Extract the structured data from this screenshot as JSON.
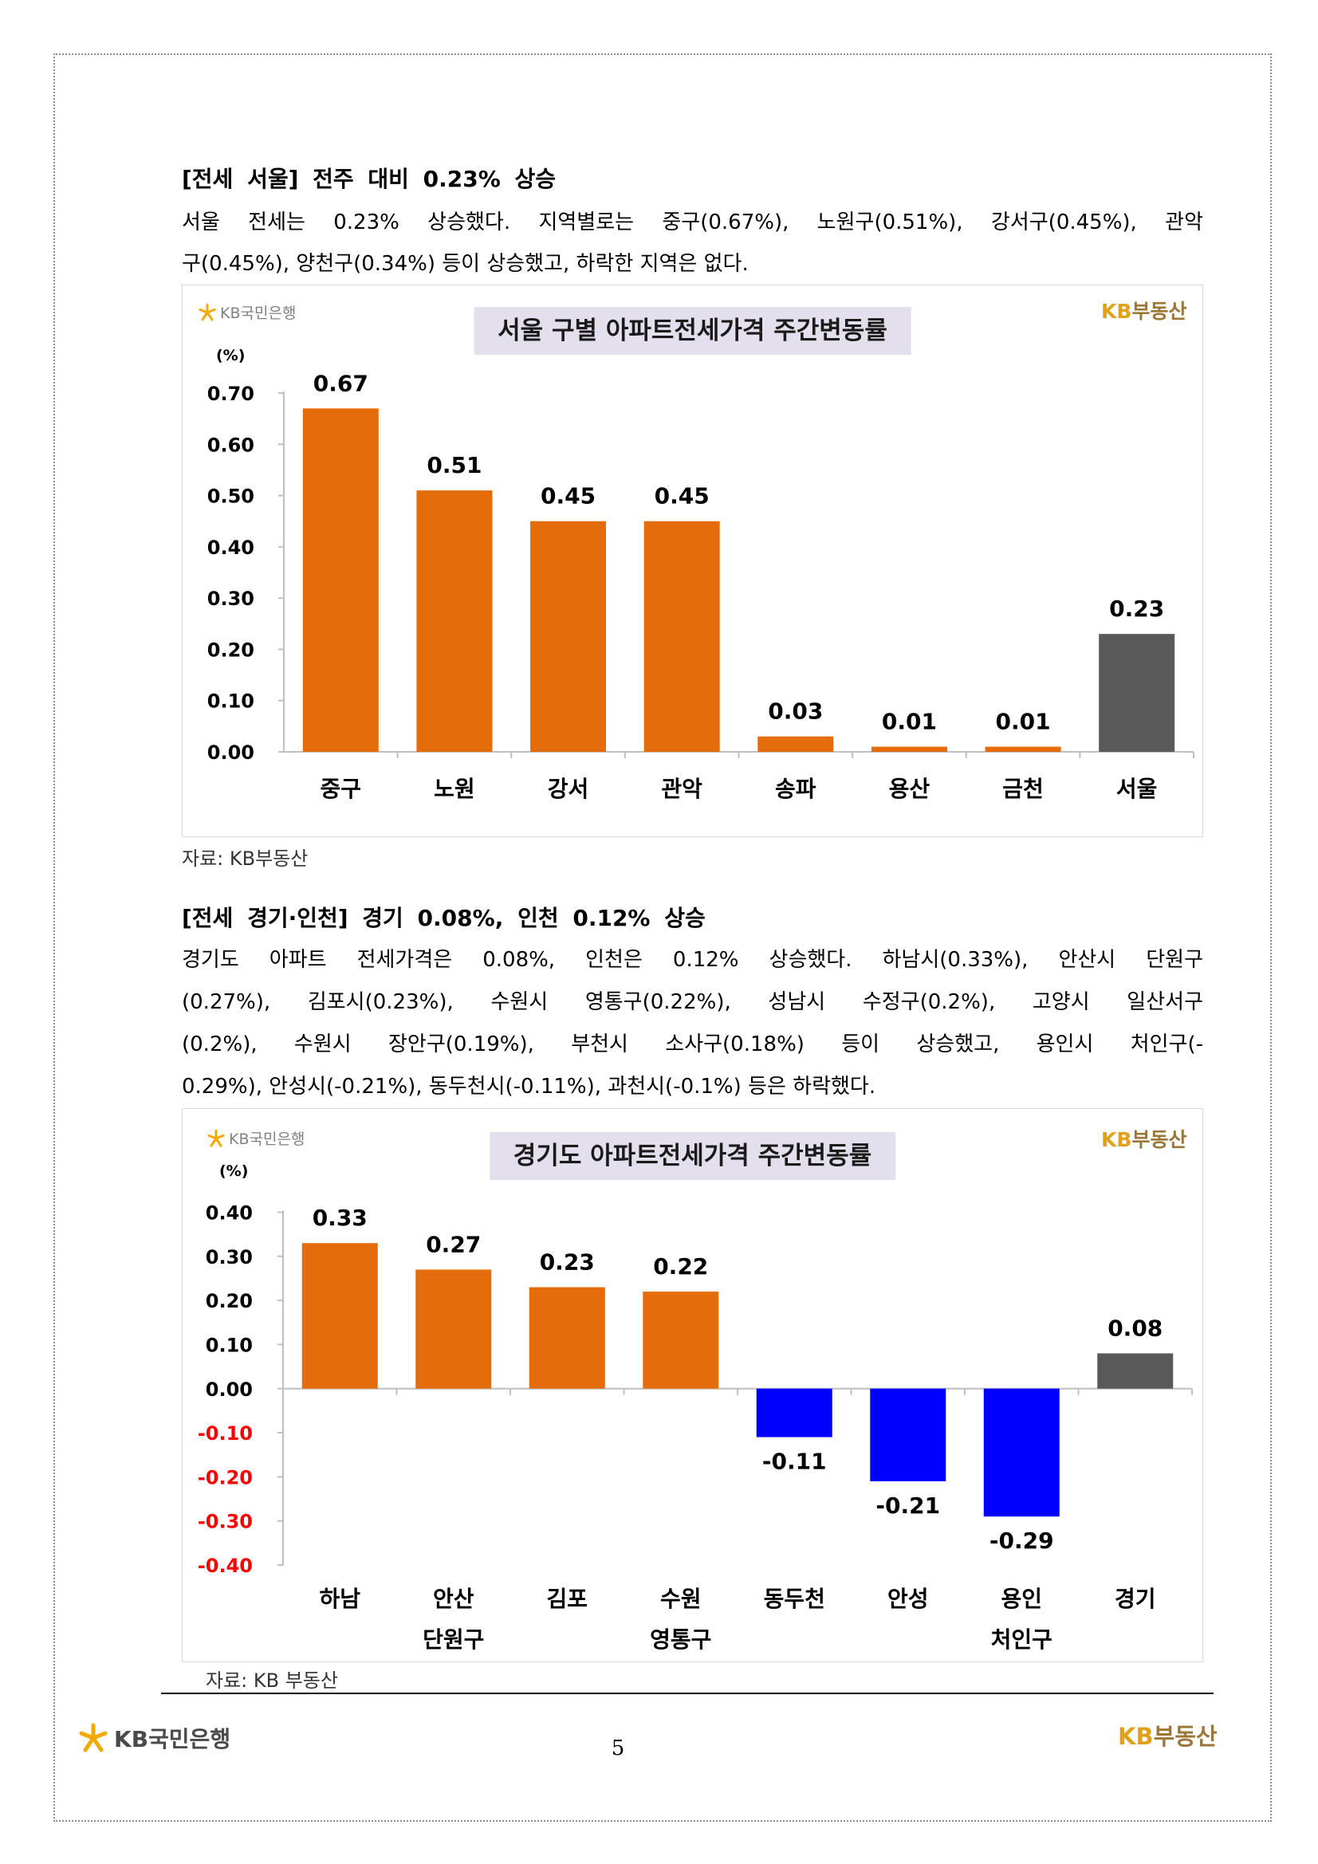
{
  "logos": {
    "bank_name": "KB국민은행",
    "realty_kb": "KB",
    "realty_name": "부동산"
  },
  "section_seoul": {
    "heading": "[전세 서울] 전주 대비 0.23% 상승",
    "body_lines": [
      "서울 전세는 0.23% 상승했다. 지역별로는 중구(0.67%), 노원구(0.51%), 강서구(0.45%), 관악",
      "구(0.45%), 양천구(0.34%) 등이 상승했고, 하락한 지역은 없다."
    ],
    "source": "자료: KB부동산"
  },
  "section_gyeonggi": {
    "heading": "[전세 경기·인천] 경기 0.08%, 인천 0.12% 상승",
    "body_lines": [
      "경기도 아파트 전세가격은 0.08%, 인천은 0.12% 상승했다. 하남시(0.33%), 안산시 단원구",
      "(0.27%), 김포시(0.23%), 수원시 영통구(0.22%), 성남시 수정구(0.2%), 고양시 일산서구",
      "(0.2%), 수원시 장안구(0.19%), 부천시 소사구(0.18%) 등이 상승했고, 용인시 처인구(-",
      "0.29%), 안성시(-0.21%), 동두천시(-0.11%), 과천시(-0.1%) 등은 하락했다."
    ],
    "source": "자료: KB 부동산"
  },
  "footer": {
    "page_number": "5"
  },
  "colors": {
    "rise_bar": "#e46c0a",
    "fall_bar": "#0000ff",
    "total_bar": "#595959",
    "negative_tick": "#ff0000",
    "title_background": "#e4dfec",
    "kb_gold": "#e0a11b",
    "realty_brown": "#9a7736"
  },
  "chart_data": [
    {
      "type": "bar",
      "title": "서울 구별 아파트전세가격 주간변동률",
      "ylabel": "(%)",
      "xlabel": "",
      "categories": [
        [
          "중구"
        ],
        [
          "노원"
        ],
        [
          "강서"
        ],
        [
          "관악"
        ],
        [
          "송파"
        ],
        [
          "용산"
        ],
        [
          "금천"
        ],
        [
          "서울"
        ]
      ],
      "values": [
        0.67,
        0.51,
        0.45,
        0.45,
        0.03,
        0.01,
        0.01,
        0.23
      ],
      "data_labels": [
        "0.67",
        "0.51",
        "0.45",
        "0.45",
        "0.03",
        "0.01",
        "0.01",
        "0.23"
      ],
      "bar_colors": [
        "#e46c0a",
        "#e46c0a",
        "#e46c0a",
        "#e46c0a",
        "#e46c0a",
        "#e46c0a",
        "#e46c0a",
        "#595959"
      ],
      "ylim": [
        0,
        0.7
      ],
      "yticks": [
        0,
        0.1,
        0.2,
        0.3,
        0.4,
        0.5,
        0.6,
        0.7
      ],
      "ytick_labels": [
        "0.00",
        "0.10",
        "0.20",
        "0.30",
        "0.40",
        "0.50",
        "0.60",
        "0.70"
      ],
      "negative_tick_color": "#ff0000",
      "grid": false,
      "legend": "none"
    },
    {
      "type": "bar",
      "title": "경기도 아파트전세가격 주간변동률",
      "ylabel": "(%)",
      "xlabel": "",
      "categories": [
        [
          "하남"
        ],
        [
          "안산",
          "단원구"
        ],
        [
          "김포"
        ],
        [
          "수원",
          "영통구"
        ],
        [
          "동두천"
        ],
        [
          "안성"
        ],
        [
          "용인",
          "처인구"
        ],
        [
          "경기"
        ]
      ],
      "values": [
        0.33,
        0.27,
        0.23,
        0.22,
        -0.11,
        -0.21,
        -0.29,
        0.08
      ],
      "data_labels": [
        "0.33",
        "0.27",
        "0.23",
        "0.22",
        "-0.11",
        "-0.21",
        "-0.29",
        "0.08"
      ],
      "bar_colors": [
        "#e46c0a",
        "#e46c0a",
        "#e46c0a",
        "#e46c0a",
        "#0000ff",
        "#0000ff",
        "#0000ff",
        "#595959"
      ],
      "ylim": [
        -0.4,
        0.4
      ],
      "yticks": [
        -0.4,
        -0.3,
        -0.2,
        -0.1,
        0,
        0.1,
        0.2,
        0.3,
        0.4
      ],
      "ytick_labels": [
        "-0.40",
        "-0.30",
        "-0.20",
        "-0.10",
        "0.00",
        "0.10",
        "0.20",
        "0.30",
        "0.40"
      ],
      "negative_tick_color": "#ff0000",
      "grid": false,
      "legend": "none"
    }
  ]
}
